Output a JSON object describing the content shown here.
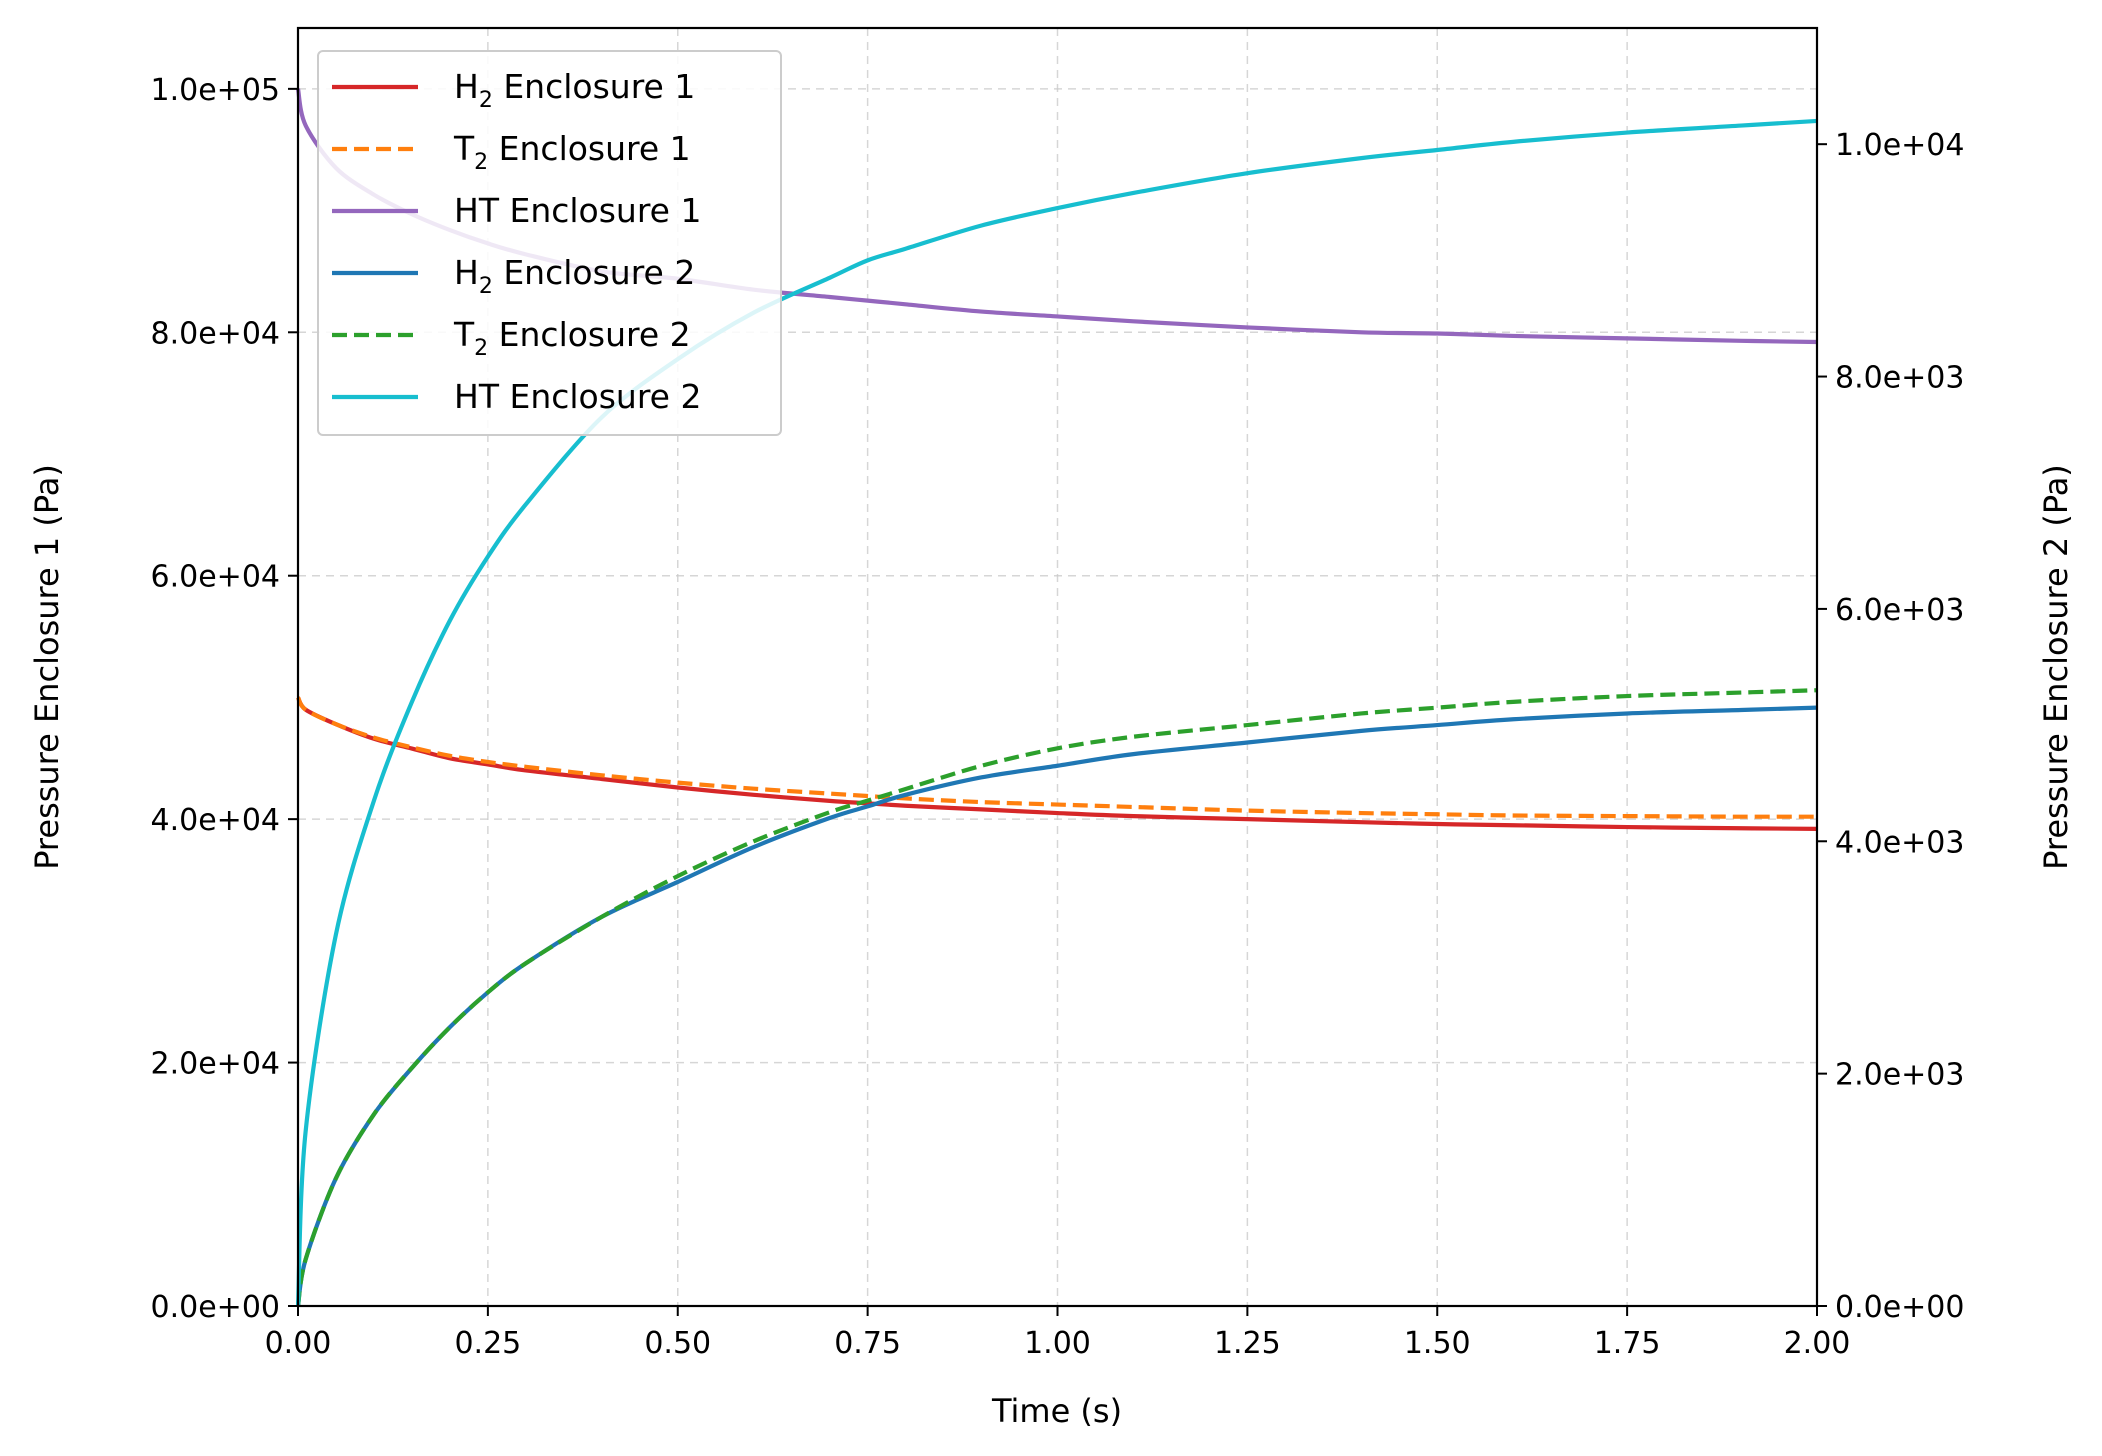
{
  "chart_data": {
    "type": "line",
    "title": "",
    "xlabel": "Time (s)",
    "ylabel_left": "Pressure Enclosure 1 (Pa)",
    "ylabel_right": "Pressure Enclosure 2 (Pa)",
    "xlim": [
      0,
      2.0
    ],
    "ylim_left": [
      0,
      105000
    ],
    "ylim_right": [
      0,
      11000
    ],
    "x_ticks": [
      "0.00",
      "0.25",
      "0.50",
      "0.75",
      "1.00",
      "1.25",
      "1.50",
      "1.75",
      "2.00"
    ],
    "y_left_ticks": [
      "0.0e+00",
      "2.0e+04",
      "4.0e+04",
      "6.0e+04",
      "8.0e+04",
      "1.0e+05"
    ],
    "y_right_ticks": [
      "0.0e+00",
      "2.0e+03",
      "4.0e+03",
      "6.0e+03",
      "8.0e+03",
      "1.0e+04"
    ],
    "grid": true,
    "legend_position": "top-left",
    "x": [
      0,
      0.01,
      0.05,
      0.1,
      0.15,
      0.2,
      0.25,
      0.3,
      0.4,
      0.5,
      0.6,
      0.7,
      0.75,
      0.8,
      0.9,
      1.0,
      1.1,
      1.25,
      1.4,
      1.5,
      1.6,
      1.75,
      1.9,
      2.0
    ],
    "series": [
      {
        "label_main": "H",
        "label_sub": "2",
        "label_rest": " Enclosure 1",
        "axis": "left",
        "color": "#d62728",
        "dash": "solid",
        "values": [
          50000,
          49000,
          47800,
          46600,
          45800,
          45000,
          44500,
          44000,
          43300,
          42600,
          42000,
          41500,
          41300,
          41100,
          40800,
          40500,
          40250,
          40000,
          39750,
          39600,
          39500,
          39350,
          39250,
          39200
        ]
      },
      {
        "label_main": "T",
        "label_sub": "2",
        "label_rest": " Enclosure 1",
        "axis": "left",
        "color": "#ff7f0e",
        "dash": "dashed",
        "values": [
          50000,
          49000,
          47800,
          46700,
          45900,
          45200,
          44700,
          44300,
          43600,
          43000,
          42500,
          42100,
          41900,
          41700,
          41400,
          41200,
          41000,
          40700,
          40500,
          40400,
          40300,
          40250,
          40200,
          40200
        ]
      },
      {
        "label_main": "HT Enclosure 1",
        "label_sub": "",
        "label_rest": "",
        "axis": "left",
        "color": "#9467bd",
        "dash": "solid",
        "values": [
          100000,
          97000,
          93500,
          91300,
          89700,
          88400,
          87300,
          86400,
          85000,
          84400,
          83500,
          82900,
          82600,
          82300,
          81700,
          81300,
          80900,
          80400,
          80000,
          79900,
          79700,
          79500,
          79300,
          79200
        ]
      },
      {
        "label_main": "H",
        "label_sub": "2",
        "label_rest": " Enclosure 2",
        "axis": "right",
        "color": "#1f77b4",
        "dash": "solid",
        "values": [
          0,
          400,
          1100,
          1650,
          2050,
          2400,
          2700,
          2950,
          3350,
          3650,
          3950,
          4200,
          4300,
          4400,
          4550,
          4650,
          4750,
          4850,
          4950,
          5000,
          5050,
          5100,
          5130,
          5150
        ]
      },
      {
        "label_main": "T",
        "label_sub": "2",
        "label_rest": " Enclosure 2",
        "axis": "right",
        "color": "#2ca02c",
        "dash": "dashed",
        "values": [
          0,
          400,
          1100,
          1650,
          2050,
          2400,
          2700,
          2950,
          3350,
          3700,
          4000,
          4250,
          4350,
          4450,
          4650,
          4800,
          4900,
          5000,
          5100,
          5150,
          5200,
          5250,
          5280,
          5300
        ]
      },
      {
        "label_main": "HT Enclosure 2",
        "label_sub": "",
        "label_rest": "",
        "axis": "right",
        "color": "#17becf",
        "dash": "solid",
        "values": [
          0,
          1500,
          3200,
          4350,
          5200,
          5900,
          6450,
          6900,
          7650,
          8150,
          8550,
          8850,
          9000,
          9100,
          9300,
          9450,
          9580,
          9750,
          9880,
          9950,
          10020,
          10100,
          10160,
          10200
        ]
      }
    ]
  }
}
